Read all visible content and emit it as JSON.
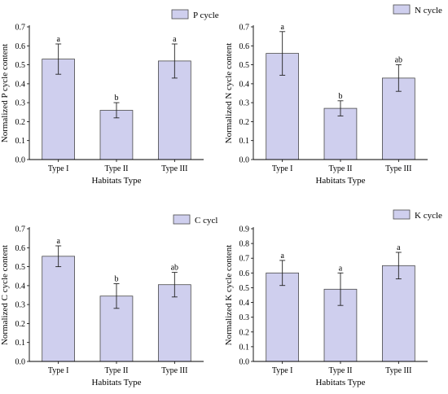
{
  "colors": {
    "bar_fill": "#cfcfee",
    "bar_stroke": "#4a4a4a",
    "axis": "#000000",
    "error": "#222222"
  },
  "chart_data": [
    {
      "type": "bar",
      "legend": "P cycle",
      "legend_position": "top-right",
      "xlabel": "Habitats Type",
      "ylabel": "Normalized P cycle content",
      "categories": [
        "Type I",
        "Type II",
        "Type III"
      ],
      "values": [
        0.53,
        0.26,
        0.52
      ],
      "errors": [
        0.08,
        0.04,
        0.09
      ],
      "letters": [
        "a",
        "b",
        "a"
      ],
      "ylim": [
        0,
        0.7
      ],
      "yticks": [
        "0.0",
        "0.1",
        "0.2",
        "0.3",
        "0.4",
        "0.5",
        "0.6",
        "0.7"
      ],
      "grid": false
    },
    {
      "type": "bar",
      "legend": "N cycle",
      "legend_position": "top-right",
      "xlabel": "Habitats Type",
      "ylabel": "Normalized N cycle content",
      "categories": [
        "Type I",
        "Type II",
        "Type III"
      ],
      "values": [
        0.56,
        0.27,
        0.43
      ],
      "errors": [
        0.115,
        0.04,
        0.07
      ],
      "letters": [
        "a",
        "b",
        "ab"
      ],
      "ylim": [
        0,
        0.7
      ],
      "yticks": [
        "0.0",
        "0.1",
        "0.2",
        "0.3",
        "0.4",
        "0.5",
        "0.6",
        "0.7"
      ],
      "grid": false
    },
    {
      "type": "bar",
      "legend": "C cycl",
      "legend_position": "top-right",
      "xlabel": "Habitats Type",
      "ylabel": "Normalized C cycle content",
      "categories": [
        "Type I",
        "Type II",
        "Type III"
      ],
      "values": [
        0.555,
        0.345,
        0.405
      ],
      "errors": [
        0.055,
        0.065,
        0.065
      ],
      "letters": [
        "a",
        "b",
        "ab"
      ],
      "ylim": [
        0,
        0.7
      ],
      "yticks": [
        "0.0",
        "0.1",
        "0.2",
        "0.3",
        "0.4",
        "0.5",
        "0.6",
        "0.7"
      ],
      "grid": false
    },
    {
      "type": "bar",
      "legend": "K cycle",
      "legend_position": "top-right",
      "xlabel": "Habitats Type",
      "ylabel": "Normalized K cycle content",
      "categories": [
        "Type I",
        "Type II",
        "Type III"
      ],
      "values": [
        0.6,
        0.49,
        0.65
      ],
      "errors": [
        0.085,
        0.11,
        0.09
      ],
      "letters": [
        "a",
        "a",
        "a"
      ],
      "ylim": [
        0,
        0.9
      ],
      "yticks": [
        "0.0",
        "0.1",
        "0.2",
        "0.3",
        "0.4",
        "0.5",
        "0.6",
        "0.7",
        "0.8",
        "0.9"
      ],
      "grid": false
    }
  ]
}
